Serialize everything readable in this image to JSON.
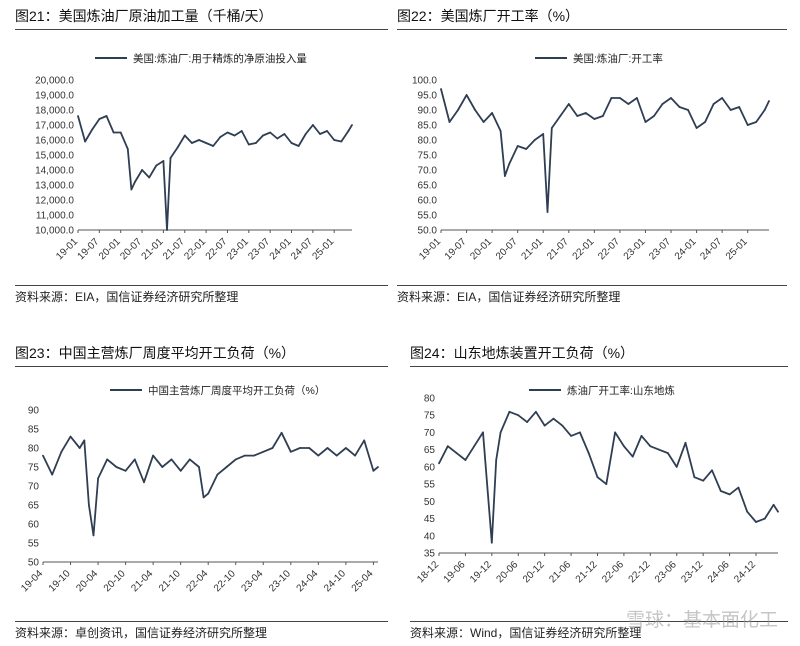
{
  "colors": {
    "series": "#2f3e53",
    "axis": "#555555"
  },
  "panels": [
    {
      "title": "图21：美国炼油厂原油加工量（千桶/天）",
      "source": "资料来源：EIA，国信证券经济研究所整理",
      "chart_data": {
        "type": "line",
        "series": [
          {
            "name": "美国:炼油厂:用于精炼的净原油投入量"
          }
        ],
        "y_ticks": [
          "20,000.0",
          "19,000.0",
          "18,000.0",
          "17,000.0",
          "16,000.0",
          "15,000.0",
          "14,000.0",
          "13,000.0",
          "12,000.0",
          "11,000.0",
          "10,000.0"
        ],
        "x_ticks": [
          "19-01",
          "19-07",
          "20-01",
          "20-07",
          "21-01",
          "21-07",
          "22-01",
          "22-07",
          "23-01",
          "23-07",
          "24-01",
          "24-07",
          "25-01"
        ],
        "ylim": [
          10000,
          20000
        ],
        "x_start": "2019-01",
        "x_end": "2025-06",
        "x": [
          "2019-01",
          "2019-03",
          "2019-05",
          "2019-07",
          "2019-09",
          "2019-11",
          "2020-01",
          "2020-03",
          "2020-04",
          "2020-05",
          "2020-07",
          "2020-09",
          "2020-11",
          "2021-01",
          "2021-02",
          "2021-03",
          "2021-05",
          "2021-07",
          "2021-09",
          "2021-11",
          "2022-01",
          "2022-03",
          "2022-05",
          "2022-07",
          "2022-09",
          "2022-11",
          "2023-01",
          "2023-03",
          "2023-05",
          "2023-07",
          "2023-09",
          "2023-11",
          "2024-01",
          "2024-03",
          "2024-05",
          "2024-07",
          "2024-09",
          "2024-11",
          "2025-01",
          "2025-03",
          "2025-05",
          "2025-06"
        ],
        "values": [
          17600,
          15900,
          16700,
          17400,
          17600,
          16500,
          16500,
          15400,
          12700,
          13200,
          14000,
          13500,
          14300,
          14600,
          10000,
          14800,
          15500,
          16300,
          15800,
          16000,
          15800,
          15600,
          16200,
          16500,
          16300,
          16600,
          15700,
          15800,
          16300,
          16500,
          16100,
          16400,
          15800,
          15600,
          16400,
          17000,
          16400,
          16600,
          16000,
          15900,
          16600,
          17000
        ]
      }
    },
    {
      "title": "图22：美国炼厂开工率（%）",
      "source": "资料来源：EIA，国信证券经济研究所整理",
      "chart_data": {
        "type": "line",
        "series": [
          {
            "name": "美国:炼油厂:开工率"
          }
        ],
        "y_ticks": [
          "100.0",
          "95.0",
          "90.0",
          "85.0",
          "80.0",
          "75.0",
          "70.0",
          "65.0",
          "60.0",
          "55.0",
          "50.0"
        ],
        "x_ticks": [
          "19-01",
          "19-07",
          "20-01",
          "20-07",
          "21-01",
          "21-07",
          "22-01",
          "22-07",
          "23-01",
          "23-07",
          "24-01",
          "24-07",
          "25-01"
        ],
        "ylim": [
          50,
          100
        ],
        "x_start": "2019-01",
        "x_end": "2025-06",
        "x": [
          "2019-01",
          "2019-03",
          "2019-05",
          "2019-07",
          "2019-09",
          "2019-11",
          "2020-01",
          "2020-03",
          "2020-04",
          "2020-05",
          "2020-07",
          "2020-09",
          "2020-11",
          "2021-01",
          "2021-02",
          "2021-03",
          "2021-05",
          "2021-07",
          "2021-09",
          "2021-11",
          "2022-01",
          "2022-03",
          "2022-05",
          "2022-07",
          "2022-09",
          "2022-11",
          "2023-01",
          "2023-03",
          "2023-05",
          "2023-07",
          "2023-09",
          "2023-11",
          "2024-01",
          "2024-03",
          "2024-05",
          "2024-07",
          "2024-09",
          "2024-11",
          "2025-01",
          "2025-03",
          "2025-05",
          "2025-06"
        ],
        "values": [
          97,
          86,
          90,
          95,
          90,
          86,
          89,
          83,
          68,
          72,
          78,
          77,
          80,
          82,
          56,
          84,
          88,
          92,
          88,
          89,
          87,
          88,
          94,
          94,
          92,
          94,
          86,
          88,
          92,
          94,
          91,
          90,
          84,
          86,
          92,
          94,
          90,
          91,
          85,
          86,
          90,
          93
        ]
      }
    },
    {
      "title": "图23：中国主营炼厂周度平均开工负荷（%）",
      "source": "资料来源：卓创资讯，国信证券经济研究所整理",
      "chart_data": {
        "type": "line",
        "series": [
          {
            "name": "中国主营炼厂周度平均开工负荷（%）"
          }
        ],
        "y_ticks": [
          "90",
          "85",
          "80",
          "75",
          "70",
          "65",
          "60",
          "55",
          "50"
        ],
        "x_ticks": [
          "19-04",
          "19-10",
          "20-04",
          "20-10",
          "21-04",
          "21-10",
          "22-04",
          "22-10",
          "23-04",
          "23-10",
          "24-04",
          "24-10",
          "25-04"
        ],
        "ylim": [
          50,
          90
        ],
        "x_start": "2019-04",
        "x_end": "2025-05",
        "x": [
          "2019-04",
          "2019-06",
          "2019-08",
          "2019-10",
          "2019-12",
          "2020-01",
          "2020-02",
          "2020-03",
          "2020-04",
          "2020-06",
          "2020-08",
          "2020-10",
          "2020-12",
          "2021-02",
          "2021-04",
          "2021-06",
          "2021-08",
          "2021-10",
          "2021-12",
          "2022-02",
          "2022-03",
          "2022-04",
          "2022-06",
          "2022-08",
          "2022-10",
          "2022-12",
          "2023-02",
          "2023-04",
          "2023-06",
          "2023-08",
          "2023-10",
          "2023-12",
          "2024-02",
          "2024-04",
          "2024-06",
          "2024-08",
          "2024-10",
          "2024-12",
          "2025-02",
          "2025-04",
          "2025-05"
        ],
        "values": [
          78,
          73,
          79,
          83,
          80,
          82,
          65,
          57,
          72,
          77,
          75,
          74,
          77,
          71,
          78,
          75,
          77,
          74,
          77,
          75,
          67,
          68,
          73,
          75,
          77,
          78,
          78,
          79,
          80,
          84,
          79,
          80,
          80,
          78,
          80,
          78,
          80,
          78,
          82,
          74,
          75
        ]
      }
    },
    {
      "title": "图24：山东地炼装置开工负荷（%）",
      "source": "资料来源：Wind，国信证券经济研究所整理",
      "chart_data": {
        "type": "line",
        "series": [
          {
            "name": "炼油厂开工率:山东地炼"
          }
        ],
        "y_ticks": [
          "80",
          "75",
          "70",
          "65",
          "60",
          "55",
          "50",
          "45",
          "40",
          "35"
        ],
        "x_ticks": [
          "18-12",
          "19-06",
          "19-12",
          "20-06",
          "20-12",
          "21-06",
          "21-12",
          "22-06",
          "22-12",
          "23-06",
          "23-12",
          "24-06",
          "24-12"
        ],
        "ylim": [
          35,
          80
        ],
        "x_start": "2018-12",
        "x_end": "2025-05",
        "x": [
          "2018-12",
          "2019-02",
          "2019-04",
          "2019-06",
          "2019-08",
          "2019-10",
          "2019-12",
          "2020-01",
          "2020-02",
          "2020-04",
          "2020-06",
          "2020-08",
          "2020-10",
          "2020-12",
          "2021-02",
          "2021-04",
          "2021-06",
          "2021-08",
          "2021-10",
          "2021-12",
          "2022-02",
          "2022-04",
          "2022-06",
          "2022-08",
          "2022-10",
          "2022-12",
          "2023-02",
          "2023-04",
          "2023-06",
          "2023-08",
          "2023-10",
          "2023-12",
          "2024-02",
          "2024-04",
          "2024-06",
          "2024-08",
          "2024-10",
          "2024-12",
          "2025-02",
          "2025-04",
          "2025-05"
        ],
        "values": [
          61,
          66,
          64,
          62,
          66,
          70,
          38,
          62,
          70,
          76,
          75,
          73,
          76,
          72,
          74,
          72,
          69,
          70,
          64,
          57,
          55,
          70,
          66,
          63,
          69,
          66,
          65,
          64,
          60,
          67,
          57,
          56,
          59,
          53,
          52,
          54,
          47,
          44,
          45,
          49,
          47
        ]
      }
    }
  ],
  "watermark": "雪球：基本面化工"
}
